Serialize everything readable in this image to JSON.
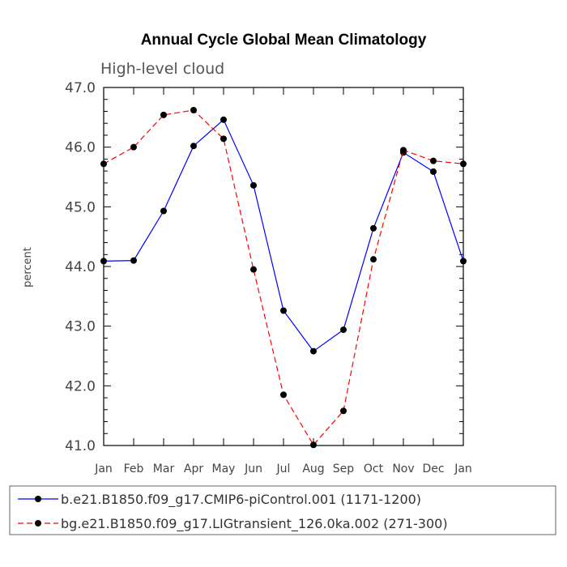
{
  "chart_data": {
    "type": "line",
    "title": "Annual Cycle Global Mean Climatology",
    "subtitle": "High-level cloud",
    "xlabel": "",
    "ylabel": "percent",
    "categories": [
      "Jan",
      "Feb",
      "Mar",
      "Apr",
      "May",
      "Jun",
      "Jul",
      "Aug",
      "Sep",
      "Oct",
      "Nov",
      "Dec",
      "Jan"
    ],
    "ylim": [
      41.0,
      47.0
    ],
    "yticks": [
      "41.0",
      "42.0",
      "43.0",
      "44.0",
      "45.0",
      "46.0",
      "47.0"
    ],
    "grid": false,
    "legend_position": "bottom",
    "series": [
      {
        "name": "b.e21.B1850.f09_g17.CMIP6-piControl.001 (1171-1200)",
        "color": "#0000ff",
        "dash": "solid",
        "values": [
          44.09,
          44.1,
          44.93,
          46.02,
          46.46,
          45.36,
          43.26,
          42.58,
          42.94,
          44.64,
          45.91,
          45.59,
          44.09
        ]
      },
      {
        "name": "bg.e21.B1850.f09_g17.LIGtransient_126.0ka.002 (271-300)",
        "color": "#ff0000",
        "dash": "dashed",
        "values": [
          45.72,
          46.0,
          46.54,
          46.62,
          46.14,
          43.95,
          41.85,
          41.01,
          41.58,
          44.12,
          45.95,
          45.77,
          45.72
        ]
      }
    ]
  }
}
